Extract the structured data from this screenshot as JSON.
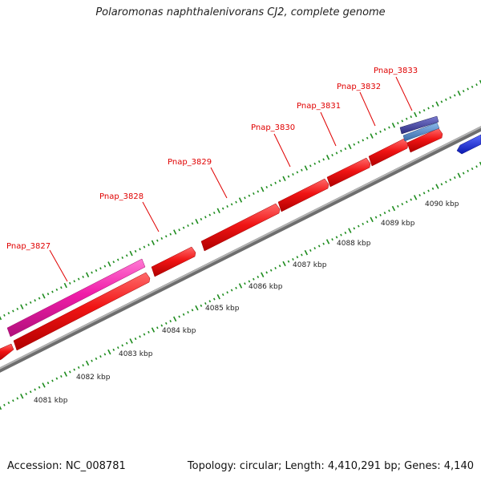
{
  "title": "Polaromonas naphthalenivorans CJ2, complete genome",
  "footer": {
    "accession": "Accession: NC_008781",
    "summary": "Topology: circular; Length: 4,410,291 bp; Genes: 4,140"
  },
  "colors": {
    "gene_forward": "#f01414",
    "gene_pink": "#f01ca8",
    "gene_navy": "#3c3ca0",
    "gene_steel": "#4a82c0",
    "gene_blue": "#1428e6",
    "backbone": "#8c8c8c",
    "tick": "#1e8c1e",
    "label": "#e00000"
  },
  "gene_labels": [
    {
      "id": "pnap_3827",
      "text": "Pnap_3827"
    },
    {
      "id": "pnap_3828",
      "text": "Pnap_3828"
    },
    {
      "id": "pnap_3829",
      "text": "Pnap_3829"
    },
    {
      "id": "pnap_3830",
      "text": "Pnap_3830"
    },
    {
      "id": "pnap_3831",
      "text": "Pnap_3831"
    },
    {
      "id": "pnap_3832",
      "text": "Pnap_3832"
    },
    {
      "id": "pnap_3833",
      "text": "Pnap_3833"
    }
  ],
  "kbp_labels": [
    "4081 kbp",
    "4082 kbp",
    "4083 kbp",
    "4084 kbp",
    "4085 kbp",
    "4086 kbp",
    "4087 kbp",
    "4088 kbp",
    "4089 kbp",
    "4090 kbp"
  ]
}
